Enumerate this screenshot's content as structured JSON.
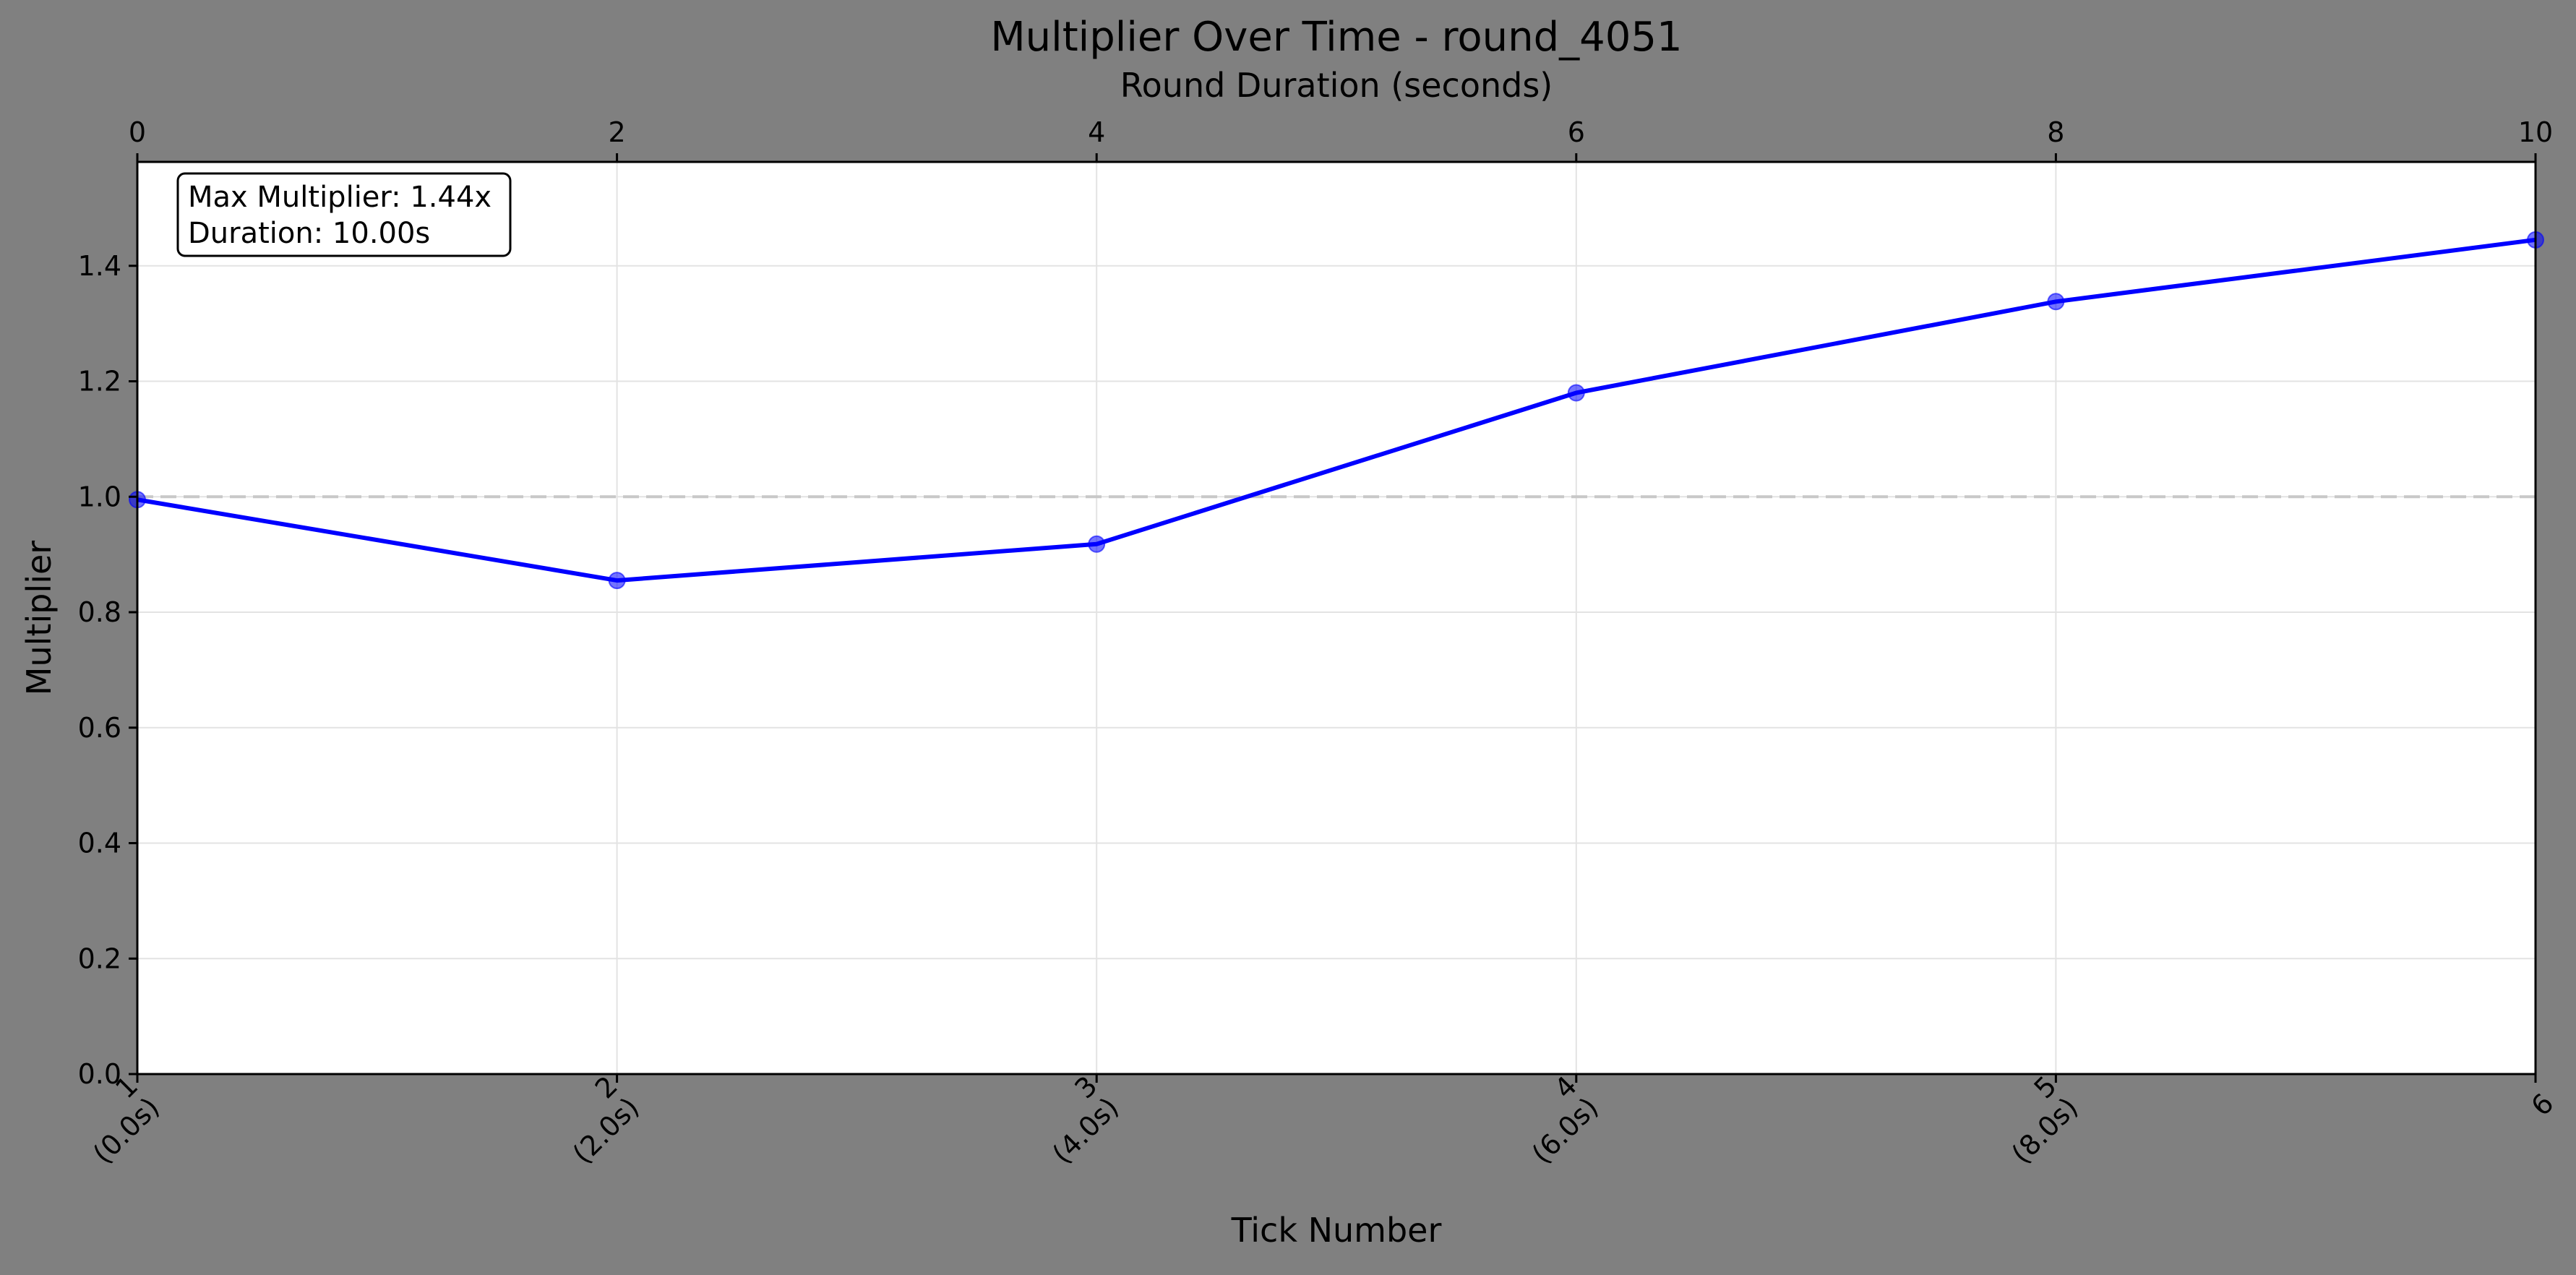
{
  "chart_data": {
    "type": "line",
    "title": "Multiplier Over Time - round_4051",
    "xlabel": "Tick Number",
    "ylabel": "Multiplier",
    "x2label": "Round Duration (seconds)",
    "x": [
      1,
      2,
      3,
      4,
      5,
      6
    ],
    "x_tick_labels": [
      "1\n(0.0s)",
      "2\n(2.0s)",
      "3\n(4.0s)",
      "4\n(6.0s)",
      "5\n(8.0s)",
      "6"
    ],
    "x2_ticks": [
      0,
      2,
      4,
      6,
      8,
      10
    ],
    "x2_range": [
      0,
      10
    ],
    "series": [
      {
        "values": [
          0.995,
          0.855,
          0.918,
          1.18,
          1.338,
          1.445
        ],
        "color": "#0000ff"
      }
    ],
    "xlim": [
      1,
      6
    ],
    "ylim": [
      0,
      1.58
    ],
    "y_ticks": [
      0.0,
      0.2,
      0.4,
      0.6,
      0.8,
      1.0,
      1.2,
      1.4
    ],
    "reference_line": {
      "y": 1.0,
      "style": "dashed",
      "color": "#c8c8c8"
    },
    "annotation": [
      "Max Multiplier: 1.44x",
      "Duration: 10.00s"
    ],
    "grid": true,
    "background": "#808080",
    "plot_background": "#ffffff"
  }
}
